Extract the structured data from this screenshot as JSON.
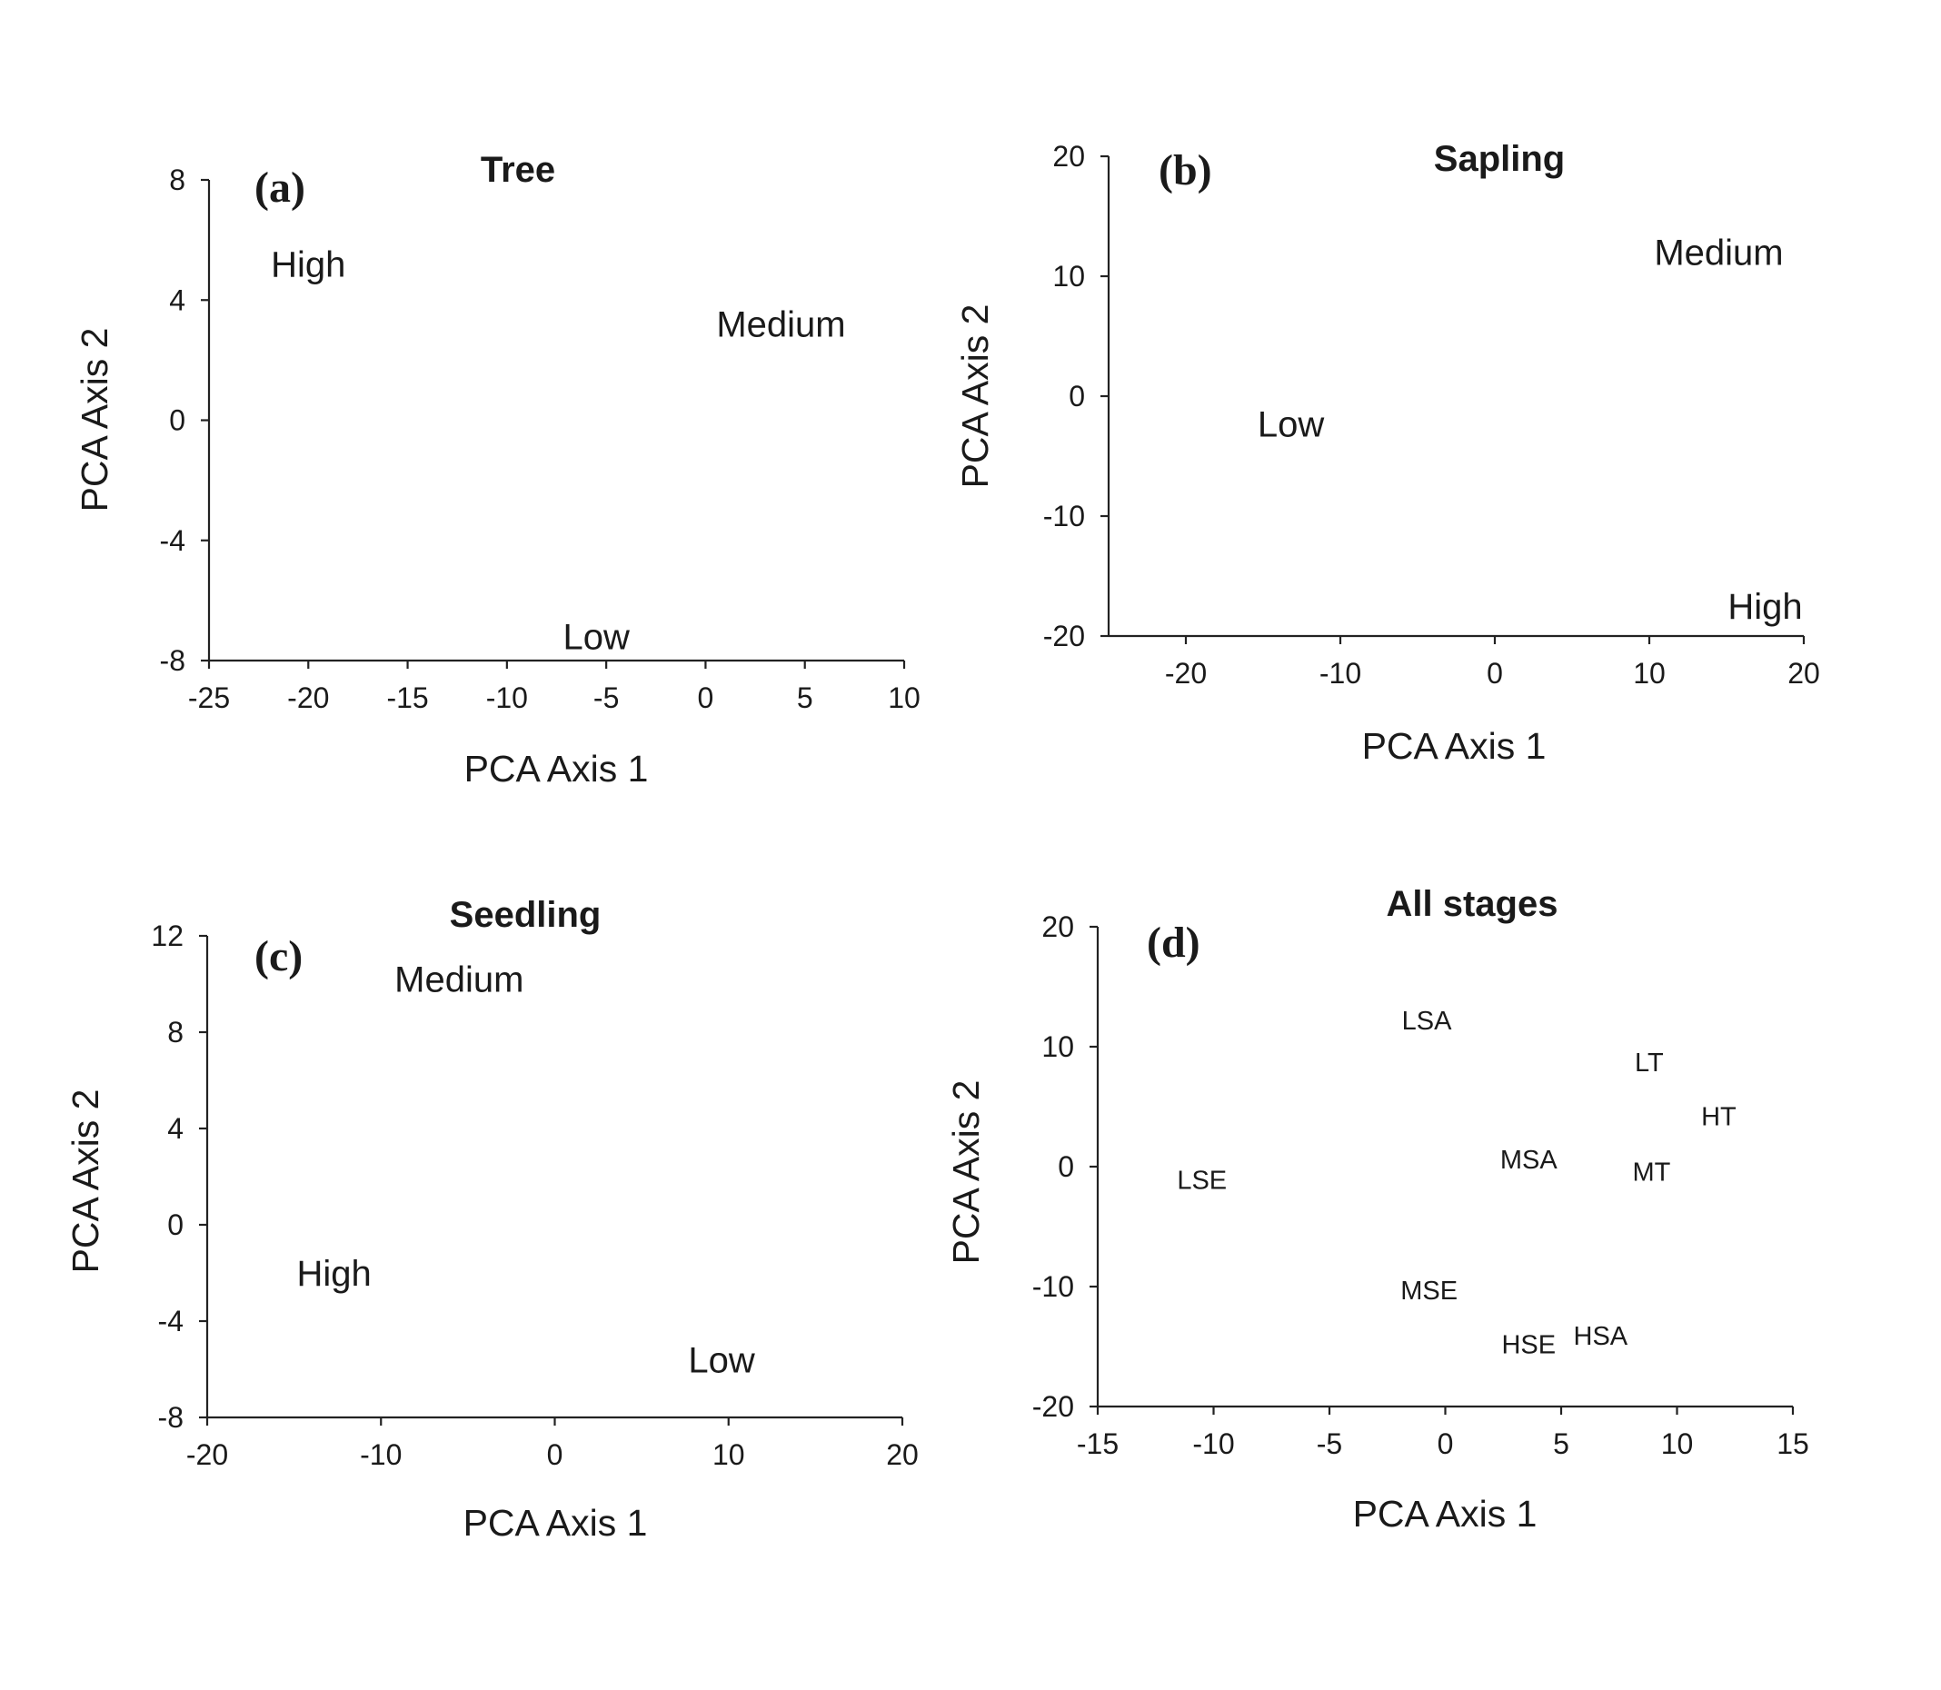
{
  "chart_data": [
    {
      "type": "scatter",
      "panel": "(a)",
      "title": "Tree",
      "xlabel": "PCA Axis 1",
      "ylabel": "PCA Axis 2",
      "xlim": [
        -25,
        10
      ],
      "ylim": [
        -8,
        8
      ],
      "xticks": [
        -25,
        -20,
        -15,
        -10,
        -5,
        0,
        5,
        10
      ],
      "yticks": [
        -8,
        -4,
        0,
        4,
        8
      ],
      "grid": false,
      "points": [
        {
          "label": "High",
          "x": -20,
          "y": 5.2
        },
        {
          "label": "Medium",
          "x": 3.8,
          "y": 3.2
        },
        {
          "label": "Low",
          "x": -5.5,
          "y": -7.2
        }
      ]
    },
    {
      "type": "scatter",
      "panel": "(b)",
      "title": "Sapling",
      "xlabel": "PCA Axis 1",
      "ylabel": "PCA Axis 2",
      "xlim": [
        -25,
        20
      ],
      "ylim": [
        -20,
        20
      ],
      "xticks": [
        -20,
        -10,
        0,
        10,
        20
      ],
      "yticks": [
        -20,
        -10,
        0,
        10,
        20
      ],
      "grid": false,
      "points": [
        {
          "label": "Medium",
          "x": 14.5,
          "y": 12
        },
        {
          "label": "Low",
          "x": -13.2,
          "y": -2.3
        },
        {
          "label": "High",
          "x": 17.5,
          "y": -17.5
        }
      ]
    },
    {
      "type": "scatter",
      "panel": "(c)",
      "title": "Seedling",
      "xlabel": "PCA Axis 1",
      "ylabel": "PCA Axis 2",
      "xlim": [
        -20,
        20
      ],
      "ylim": [
        -8,
        12
      ],
      "xticks": [
        -20,
        -10,
        0,
        10,
        20
      ],
      "yticks": [
        -8,
        -4,
        0,
        4,
        8,
        12
      ],
      "grid": false,
      "points": [
        {
          "label": "Medium",
          "x": -5.5,
          "y": 10.2
        },
        {
          "label": "High",
          "x": -12.7,
          "y": -2
        },
        {
          "label": "Low",
          "x": 9.6,
          "y": -5.6
        }
      ]
    },
    {
      "type": "scatter",
      "panel": "(d)",
      "title": "All stages",
      "xlabel": "PCA Axis 1",
      "ylabel": "PCA Axis 2",
      "xlim": [
        -15,
        15
      ],
      "ylim": [
        -20,
        20
      ],
      "xticks": [
        -15,
        -10,
        -5,
        0,
        5,
        10,
        15
      ],
      "yticks": [
        -20,
        -10,
        0,
        10,
        20
      ],
      "grid": false,
      "points": [
        {
          "label": "LSA",
          "x": -0.8,
          "y": 12.2
        },
        {
          "label": "LT",
          "x": 8.8,
          "y": 8.7
        },
        {
          "label": "HT",
          "x": 11.8,
          "y": 4.2
        },
        {
          "label": "MSA",
          "x": 3.6,
          "y": 0.6
        },
        {
          "label": "MT",
          "x": 8.9,
          "y": -0.4
        },
        {
          "label": "LSE",
          "x": -10.5,
          "y": -1.1
        },
        {
          "label": "MSE",
          "x": -0.7,
          "y": -10.3
        },
        {
          "label": "HSE",
          "x": 3.6,
          "y": -14.8
        },
        {
          "label": "HSA",
          "x": 6.7,
          "y": -14.1
        }
      ]
    }
  ]
}
